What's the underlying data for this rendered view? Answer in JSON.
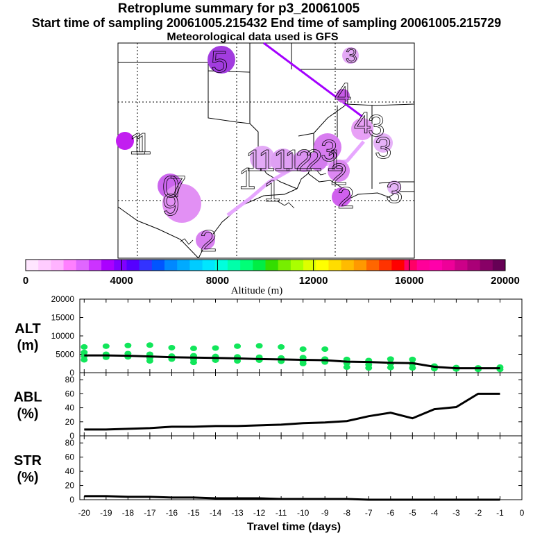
{
  "title": "Retroplume summary for p3_20061005",
  "subtitle": "Start time of sampling 20061005.215432     End time of sampling 20061005.215729",
  "met_line": "Meteorological data used is GFS",
  "colorbar": {
    "label": "Altitude (m)",
    "ticks": [
      "0",
      "4000",
      "8000",
      "12000",
      "16000",
      "20000"
    ],
    "colors": [
      "#ffe6ff",
      "#ffccff",
      "#ffb3ff",
      "#ff80ff",
      "#e066ff",
      "#cc33ff",
      "#aa00ff",
      "#8000ff",
      "#5500ff",
      "#3333ff",
      "#0055ff",
      "#0088ff",
      "#00aaff",
      "#00ccff",
      "#00e6ff",
      "#00ffdd",
      "#00ffaa",
      "#00ff77",
      "#00ee44",
      "#33dd00",
      "#77ee00",
      "#aaff00",
      "#ddff00",
      "#ffff00",
      "#ffdd00",
      "#ffbb00",
      "#ff9900",
      "#ff6600",
      "#ff3300",
      "#ff0000",
      "#ff0066",
      "#ff0099",
      "#ff00aa",
      "#ee0099",
      "#cc0088",
      "#aa0077",
      "#880066",
      "#660055"
    ]
  },
  "map_labels": [
    "5",
    "1",
    "1",
    "4",
    "4",
    "3",
    "3",
    "3",
    "1",
    "1",
    "1",
    "1",
    "1",
    "1",
    "2",
    "2",
    "2",
    "2",
    "1",
    "0",
    "7",
    "9",
    "2",
    "3",
    "3"
  ],
  "chart_data": [
    {
      "type": "line",
      "label": "ALT",
      "unit": "(m)",
      "ylim": [
        0,
        20000
      ],
      "yticks": [
        "0",
        "5000",
        "10000",
        "15000",
        "20000"
      ],
      "x": [
        -20,
        -19,
        -18,
        -17,
        -16,
        -15,
        -14,
        -13,
        -12,
        -11,
        -10,
        -9,
        -8,
        -7,
        -6,
        -5,
        -4,
        -3,
        -2,
        -1
      ],
      "values": [
        4700,
        4700,
        4600,
        4400,
        4200,
        4100,
        4000,
        3900,
        3700,
        3600,
        3500,
        3400,
        3000,
        2900,
        2700,
        2600,
        1600,
        1200,
        1200,
        1200
      ],
      "scatter": [
        [
          -20,
          7000
        ],
        [
          -20,
          5500
        ],
        [
          -20,
          4500
        ],
        [
          -20,
          3500
        ],
        [
          -19,
          7200
        ],
        [
          -19,
          5000
        ],
        [
          -19,
          4200
        ],
        [
          -18,
          7400
        ],
        [
          -18,
          5200
        ],
        [
          -18,
          4300
        ],
        [
          -17,
          7500
        ],
        [
          -17,
          5000
        ],
        [
          -17,
          4000
        ],
        [
          -17,
          3200
        ],
        [
          -16,
          6800
        ],
        [
          -16,
          4500
        ],
        [
          -16,
          3700
        ],
        [
          -15,
          6600
        ],
        [
          -15,
          4600
        ],
        [
          -15,
          3600
        ],
        [
          -15,
          2800
        ],
        [
          -14,
          6700
        ],
        [
          -14,
          4400
        ],
        [
          -14,
          3400
        ],
        [
          -13,
          7200
        ],
        [
          -13,
          4300
        ],
        [
          -13,
          3200
        ],
        [
          -12,
          7300
        ],
        [
          -12,
          4200
        ],
        [
          -12,
          3400
        ],
        [
          -11,
          7000
        ],
        [
          -11,
          4000
        ],
        [
          -11,
          3100
        ],
        [
          -10,
          6400
        ],
        [
          -10,
          4100
        ],
        [
          -10,
          3200
        ],
        [
          -10,
          2500
        ],
        [
          -9,
          6400
        ],
        [
          -9,
          3700
        ],
        [
          -9,
          2900
        ],
        [
          -8,
          3600
        ],
        [
          -8,
          2600
        ],
        [
          -8,
          1500
        ],
        [
          -7,
          3300
        ],
        [
          -7,
          2200
        ],
        [
          -7,
          1300
        ],
        [
          -6,
          3700
        ],
        [
          -6,
          2500
        ],
        [
          -6,
          1400
        ],
        [
          -5,
          3600
        ],
        [
          -5,
          2400
        ],
        [
          -5,
          1300
        ],
        [
          -4,
          1800
        ],
        [
          -4,
          1100
        ],
        [
          -3,
          1400
        ],
        [
          -3,
          1000
        ],
        [
          -2,
          1300
        ],
        [
          -2,
          900
        ],
        [
          -1,
          1500
        ],
        [
          -1,
          900
        ]
      ]
    },
    {
      "type": "line",
      "label": "ABL",
      "unit": "(%)",
      "ylim": [
        0,
        90
      ],
      "yticks": [
        "0",
        "20",
        "40",
        "60",
        "80"
      ],
      "x": [
        -20,
        -19,
        -18,
        -17,
        -16,
        -15,
        -14,
        -13,
        -12,
        -11,
        -10,
        -9,
        -8,
        -7,
        -6,
        -5,
        -4,
        -3,
        -2,
        -1
      ],
      "values": [
        9,
        9,
        10,
        11,
        13,
        13,
        14,
        14,
        15,
        16,
        18,
        19,
        21,
        28,
        33,
        25,
        38,
        41,
        60,
        60
      ]
    },
    {
      "type": "line",
      "label": "STR",
      "unit": "(%)",
      "ylim": [
        0,
        90
      ],
      "yticks": [
        "0",
        "20",
        "40",
        "60",
        "80"
      ],
      "x": [
        -20,
        -19,
        -18,
        -17,
        -16,
        -15,
        -14,
        -13,
        -12,
        -11,
        -10,
        -9,
        -8,
        -7,
        -6,
        -5,
        -4,
        -3,
        -2,
        -1
      ],
      "values": [
        5,
        5,
        4,
        4,
        3,
        3,
        2,
        2,
        2,
        1,
        1,
        1,
        1,
        0,
        0,
        0,
        0,
        0,
        0,
        0
      ],
      "xlabel": "Travel time (days)",
      "xticks": [
        "-20",
        "-19",
        "-18",
        "-17",
        "-16",
        "-15",
        "-14",
        "-13",
        "-12",
        "-11",
        "-10",
        "-9",
        "-8",
        "-7",
        "-6",
        "-5",
        "-4",
        "-3",
        "-2",
        "-1",
        "0"
      ]
    }
  ]
}
